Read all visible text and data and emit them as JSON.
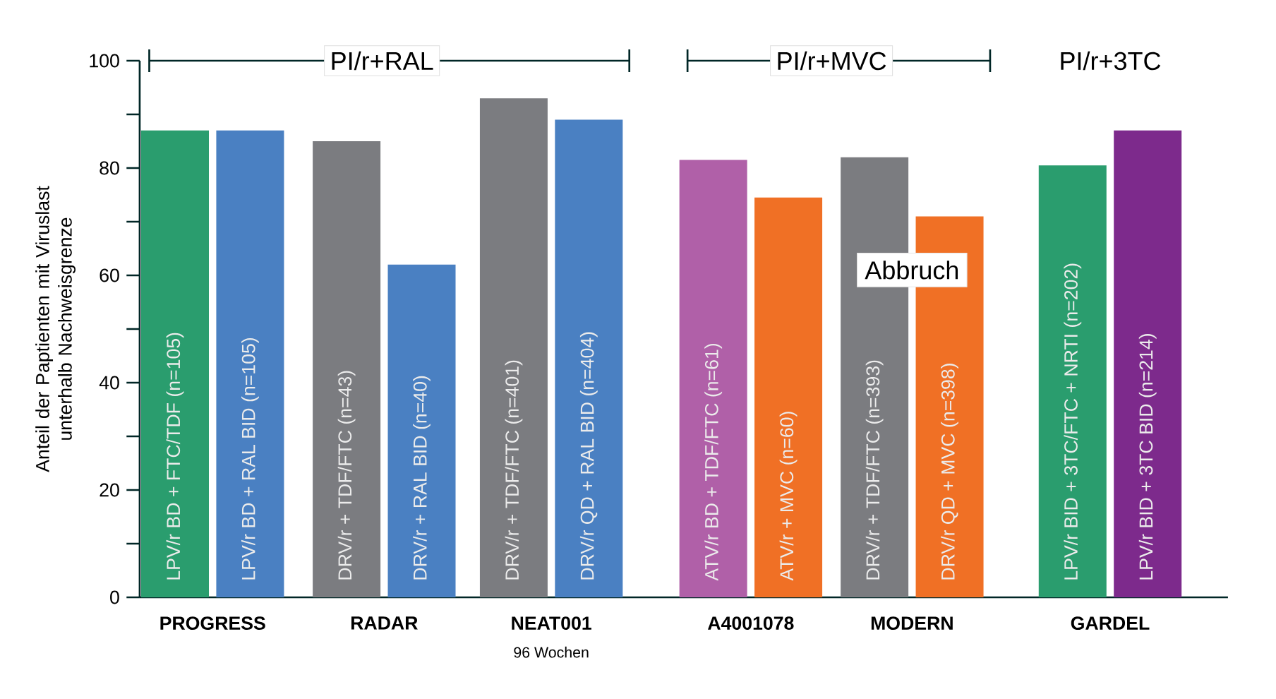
{
  "chart_data": {
    "type": "bar",
    "categories": [
      "LPV/r BD + FTC/TDF (n=105)",
      "LPV/r BD + RAL BID (n=105)",
      "DRV/r + TDF/FTC (n=43)",
      "DRV/r + RAL BID (n=40)",
      "DRV/r + TDF/FTC (n=401)",
      "DRV/r QD + RAL BID (n=404)",
      "ATV/r BD + TDF/FTC (n=61)",
      "ATV/r + MVC (n=60)",
      "DRV/r + TDF/FTC (n=393)",
      "DRV/r QD + MVC (n=398)",
      "LPV/r BID + 3TC/FTC + NRTI (n=202)",
      "LPV/r BID + 3TC BID (n=214)"
    ],
    "values": [
      87,
      87,
      85,
      62,
      93,
      89,
      81.5,
      74.5,
      82,
      71,
      80.5,
      87
    ],
    "colors": [
      "#2a9d6e",
      "#4a80c2",
      "#7b7c80",
      "#4a80c2",
      "#7b7c80",
      "#4a80c2",
      "#b060a8",
      "#f07025",
      "#7b7c80",
      "#f07025",
      "#2a9d6e",
      "#7d2a8c"
    ],
    "ylabel": "Anteil der Paptienten mit Viruslast unterhalb Nachweisgrenze",
    "ylim": [
      0,
      100
    ],
    "yticks": [
      0,
      {
        "value": 10,
        "label": null
      },
      20,
      {
        "value": 30,
        "label": null
      },
      40,
      {
        "value": 50,
        "label": null
      },
      60,
      {
        "value": 70,
        "label": null
      },
      80,
      {
        "value": 90,
        "label": null
      },
      100
    ],
    "annotations": [
      "PI/r+RAL",
      "PI/r+MVC",
      "PI/r+3TC",
      "PROGRESS",
      "RADAR",
      "NEAT001",
      "96 Wochen",
      "A4001078",
      "MODERN",
      "GARDEL",
      "Abbruch"
    ]
  }
}
